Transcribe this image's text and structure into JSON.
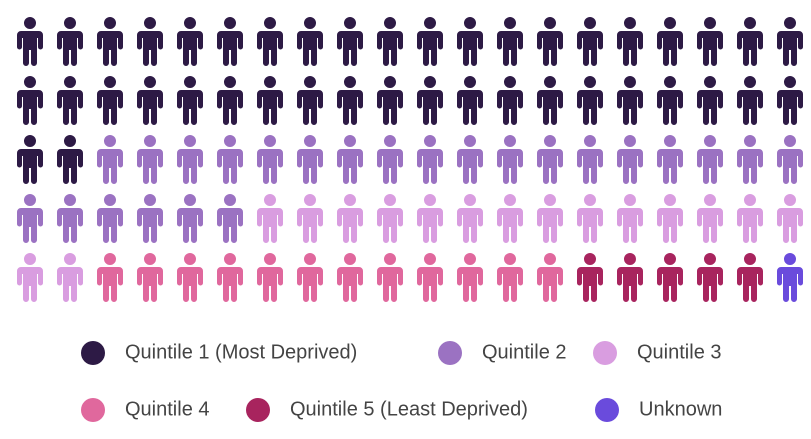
{
  "chart_data": {
    "type": "pictogram",
    "series": [
      {
        "name": "Quintile 1 (Most Deprived)",
        "color": "#2d1a45",
        "value": 42
      },
      {
        "name": "Quintile 2",
        "color": "#9b72c2",
        "value": 24
      },
      {
        "name": "Quintile 3",
        "color": "#d99de0",
        "value": 16
      },
      {
        "name": "Quintile 4",
        "color": "#e0689d",
        "value": 12
      },
      {
        "name": "Quintile 5 (Least Deprived)",
        "color": "#a8245e",
        "value": 5
      },
      {
        "name": "Unknown",
        "color": "#6a4bdc",
        "value": 1
      }
    ]
  }
}
